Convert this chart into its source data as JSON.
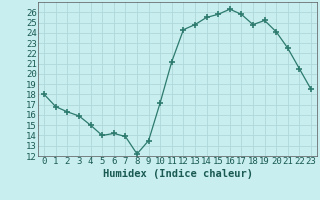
{
  "x": [
    0,
    1,
    2,
    3,
    4,
    5,
    6,
    7,
    8,
    9,
    10,
    11,
    12,
    13,
    14,
    15,
    16,
    17,
    18,
    19,
    20,
    21,
    22,
    23
  ],
  "y": [
    18.0,
    16.8,
    16.3,
    15.9,
    15.0,
    14.0,
    14.2,
    13.9,
    12.2,
    13.5,
    17.2,
    21.2,
    24.3,
    24.8,
    25.5,
    25.8,
    26.3,
    25.8,
    24.8,
    25.2,
    24.1,
    22.5,
    20.5,
    18.5
  ],
  "line_color": "#2d7a6e",
  "marker": "+",
  "marker_size": 4,
  "bg_color": "#c8eef0",
  "grid_color": "#b0d8da",
  "xlabel": "Humidex (Indice chaleur)",
  "ylim": [
    12,
    27
  ],
  "xlim": [
    -0.5,
    23.5
  ],
  "yticks": [
    12,
    13,
    14,
    15,
    16,
    17,
    18,
    19,
    20,
    21,
    22,
    23,
    24,
    25,
    26
  ],
  "xticks": [
    0,
    1,
    2,
    3,
    4,
    5,
    6,
    7,
    8,
    9,
    10,
    11,
    12,
    13,
    14,
    15,
    16,
    17,
    18,
    19,
    20,
    21,
    22,
    23
  ],
  "xlabel_fontsize": 7.5,
  "tick_fontsize": 6.5,
  "line_width": 0.9
}
